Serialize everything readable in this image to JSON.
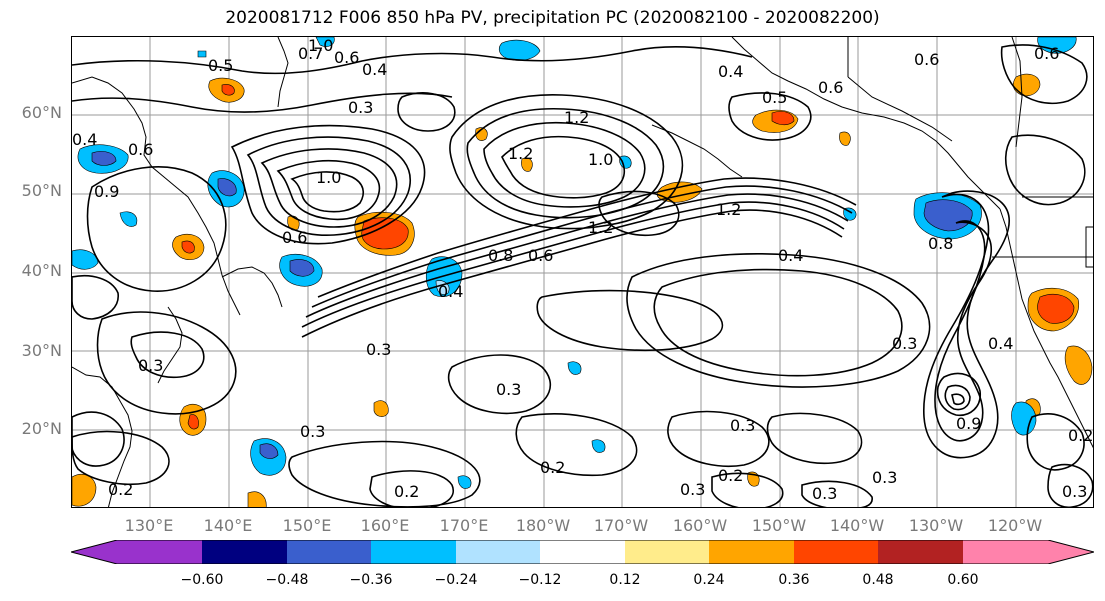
{
  "title": "2020081712 F006 850 hPa PV, precipitation PC (2020082100 - 2020082200)",
  "lat_labels": [
    "60°N",
    "50°N",
    "40°N",
    "30°N",
    "20°N"
  ],
  "lon_labels": [
    "130°E",
    "140°E",
    "150°E",
    "160°E",
    "170°E",
    "180°W",
    "170°W",
    "160°W",
    "150°W",
    "140°W",
    "130°W",
    "120°W"
  ],
  "contour_labels": [
    "1.0",
    "0.7",
    "0.6",
    "0.5",
    "0.4",
    "0.3",
    "0.4",
    "0.6",
    "1.0",
    "1.2",
    "1.2",
    "1.0",
    "1.2",
    "1.2",
    "0.8",
    "0.6",
    "0.4",
    "0.4",
    "0.5",
    "0.6",
    "0.4",
    "0.6",
    "0.8",
    "0.6",
    "0.9",
    "0.3",
    "0.3",
    "0.3",
    "0.3",
    "0.3",
    "0.2",
    "0.2",
    "0.2",
    "0.3",
    "0.3",
    "0.3",
    "0.3",
    "0.2",
    "0.4",
    "0.9",
    "0.2",
    "0.3",
    "0.6"
  ],
  "colorbar": {
    "ticks": [
      "−0.60",
      "−0.48",
      "−0.36",
      "−0.24",
      "−0.12",
      "0.12",
      "0.24",
      "0.36",
      "0.48",
      "0.60"
    ],
    "colors": [
      "#9932cc",
      "#000080",
      "#3a5fcd",
      "#00bfff",
      "#b0e2ff",
      "#ffffff",
      "#ffec8b",
      "#ffa500",
      "#ff4500",
      "#b22222",
      "#ff82ab"
    ]
  }
}
